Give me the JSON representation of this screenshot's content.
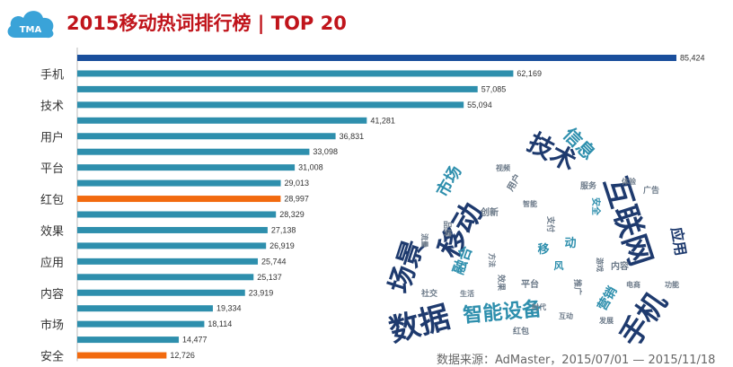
{
  "header": {
    "title": "2015移动热词排行榜 | TOP 20",
    "logo_text": "TMA"
  },
  "source_note": "数据来源：AdMaster，2015/07/01 — 2015/11/18",
  "colors": {
    "bar_default": "#2e8fad",
    "bar_top": "#1a4f9c",
    "bar_highlight": "#f26a0f",
    "title": "#c0141b",
    "logo": "#3aa3d8"
  },
  "chart_data": {
    "type": "bar",
    "orientation": "horizontal",
    "title": "2015移动热词排行榜 | TOP 20",
    "categories": [
      "",
      "手机",
      "",
      "技术",
      "",
      "用户",
      "",
      "平台",
      "",
      "红包",
      "",
      "效果",
      "",
      "应用",
      "",
      "内容",
      "",
      "市场",
      "",
      "安全"
    ],
    "values": [
      85424,
      62169,
      57085,
      55094,
      41281,
      36831,
      33098,
      31008,
      29013,
      28997,
      28329,
      27138,
      26919,
      25744,
      25137,
      23919,
      19334,
      18114,
      14477,
      12726
    ],
    "value_labels": [
      "85,424",
      "62,169",
      "57,085",
      "55,094",
      "41,281",
      "36,831",
      "33,098",
      "31,008",
      "29,013",
      "28,997",
      "28,329",
      "27,138",
      "26,919",
      "25,744",
      "25,137",
      "23,919",
      "19,334",
      "18,114",
      "14,477",
      "12,726"
    ],
    "highlighted_indices": [
      9,
      19
    ],
    "top_index": 0,
    "xlim": [
      0,
      85424
    ],
    "grid": false,
    "legend": "none"
  },
  "word_cloud": {
    "words": [
      {
        "text": "数据",
        "color": "#1e3a6e",
        "weight": 1.0
      },
      {
        "text": "场景",
        "color": "#1e3a6e",
        "weight": 0.95
      },
      {
        "text": "移动",
        "color": "#1e3a6e",
        "weight": 0.95
      },
      {
        "text": "技术",
        "color": "#1e3a6e",
        "weight": 0.9
      },
      {
        "text": "互联网",
        "color": "#1e3a6e",
        "weight": 0.9
      },
      {
        "text": "手机",
        "color": "#1e3a6e",
        "weight": 0.9
      },
      {
        "text": "智能设备",
        "color": "#2e8fad",
        "weight": 0.8
      },
      {
        "text": "信息",
        "color": "#2e8fad",
        "weight": 0.7
      },
      {
        "text": "市场",
        "color": "#2e8fad",
        "weight": 0.6
      },
      {
        "text": "融合",
        "color": "#2e8fad",
        "weight": 0.55
      },
      {
        "text": "应用",
        "color": "#1e3a6e",
        "weight": 0.55
      },
      {
        "text": "营销",
        "color": "#2e8fad",
        "weight": 0.5
      },
      {
        "text": "移",
        "color": "#2e8fad",
        "weight": 0.4
      },
      {
        "text": "动",
        "color": "#2e8fad",
        "weight": 0.4
      },
      {
        "text": "风",
        "color": "#2e8fad",
        "weight": 0.35
      },
      {
        "text": "创新",
        "color": "#6c7a89",
        "weight": 0.3
      },
      {
        "text": "安全",
        "color": "#2e8fad",
        "weight": 0.3
      },
      {
        "text": "用户",
        "color": "#6c7a89",
        "weight": 0.28
      },
      {
        "text": "平台",
        "color": "#6c7a89",
        "weight": 0.28
      },
      {
        "text": "内容",
        "color": "#6c7a89",
        "weight": 0.25
      },
      {
        "text": "效果",
        "color": "#6c7a89",
        "weight": 0.25
      },
      {
        "text": "红包",
        "color": "#6c7a89",
        "weight": 0.22
      },
      {
        "text": "支付",
        "color": "#6c7a89",
        "weight": 0.2
      },
      {
        "text": "服务",
        "color": "#6c7a89",
        "weight": 0.2
      },
      {
        "text": "品牌",
        "color": "#6c7a89",
        "weight": 0.2
      },
      {
        "text": "广告",
        "color": "#6c7a89",
        "weight": 0.2
      },
      {
        "text": "推广",
        "color": "#6c7a89",
        "weight": 0.18
      },
      {
        "text": "社交",
        "color": "#6c7a89",
        "weight": 0.18
      },
      {
        "text": "体验",
        "color": "#6c7a89",
        "weight": 0.18
      },
      {
        "text": "智能",
        "color": "#6c7a89",
        "weight": 0.16
      },
      {
        "text": "互动",
        "color": "#6c7a89",
        "weight": 0.16
      },
      {
        "text": "方法",
        "color": "#6c7a89",
        "weight": 0.15
      },
      {
        "text": "电商",
        "color": "#6c7a89",
        "weight": 0.15
      },
      {
        "text": "视频",
        "color": "#6c7a89",
        "weight": 0.15
      },
      {
        "text": "游戏",
        "color": "#6c7a89",
        "weight": 0.14
      },
      {
        "text": "时代",
        "color": "#6c7a89",
        "weight": 0.14
      },
      {
        "text": "功能",
        "color": "#6c7a89",
        "weight": 0.14
      },
      {
        "text": "生活",
        "color": "#6c7a89",
        "weight": 0.13
      },
      {
        "text": "发展",
        "color": "#6c7a89",
        "weight": 0.13
      },
      {
        "text": "流量",
        "color": "#6c7a89",
        "weight": 0.13
      }
    ]
  }
}
